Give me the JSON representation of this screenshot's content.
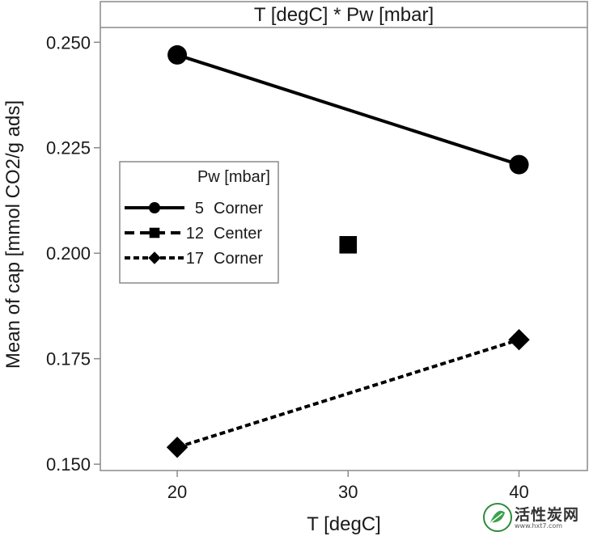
{
  "chart_data": {
    "type": "line",
    "title": "T [degC] * Pw [mbar]",
    "xlabel": "T [degC]",
    "ylabel": "Mean of cap [mmol CO2/g ads]",
    "x_ticks": [
      20,
      30,
      40
    ],
    "y_ticks": [
      "0.150",
      "0.175",
      "0.200",
      "0.225",
      "0.250"
    ],
    "xlim": [
      15.5,
      44.0
    ],
    "ylim": [
      0.1485,
      0.2535
    ],
    "legend_title": "Pw [mbar]",
    "legend_position": "left-center",
    "series": [
      {
        "name": "5",
        "label": "Corner",
        "marker": "circle",
        "line": "solid",
        "points": [
          {
            "x": 20,
            "y": 0.247
          },
          {
            "x": 40,
            "y": 0.221
          }
        ]
      },
      {
        "name": "12",
        "label": "Center",
        "marker": "square",
        "line": "dashed",
        "points": [
          {
            "x": 30,
            "y": 0.202
          }
        ]
      },
      {
        "name": "17",
        "label": "Corner",
        "marker": "diamond",
        "line": "dotted",
        "points": [
          {
            "x": 20,
            "y": 0.154
          },
          {
            "x": 40,
            "y": 0.1795
          }
        ]
      }
    ]
  },
  "watermark": {
    "text": "活性炭网",
    "url": "www.hxt7.com"
  }
}
